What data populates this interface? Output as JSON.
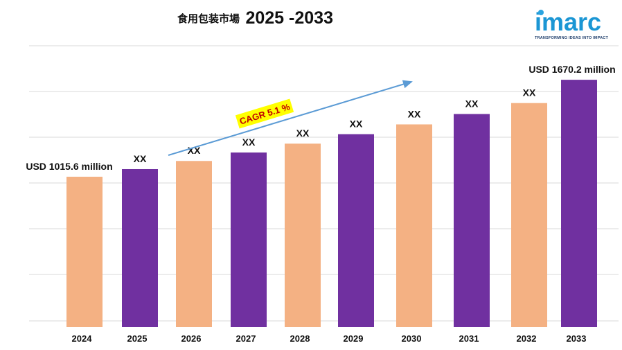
{
  "header": {
    "title_cn": "食用包装市場",
    "title_years": "2025 -2033"
  },
  "logo": {
    "word": "imarc",
    "tagline": "TRANSFORMING IDEAS INTO IMPACT",
    "color": "#1b96d4"
  },
  "colors": {
    "peach": "#f4b183",
    "purple": "#7030a0",
    "grid": "#d9d9d9",
    "arrow": "#5b9bd5",
    "cagr_bg": "#ffff00",
    "cagr_text": "#c00000"
  },
  "chart_data": {
    "type": "bar",
    "categories": [
      "2024",
      "2025",
      "2026",
      "2027",
      "2028",
      "2029",
      "2030",
      "2031",
      "2032",
      "2033"
    ],
    "values": [
      1015.6,
      1067,
      1122,
      1179,
      1239,
      1303,
      1369,
      1439,
      1513,
      1670.2
    ],
    "labels": [
      "USD 1015.6 million",
      "XX",
      "XX",
      "XX",
      "XX",
      "XX",
      "XX",
      "XX",
      "XX",
      "USD 1670.2 million"
    ],
    "bar_colors": [
      "#f4b183",
      "#7030a0",
      "#f4b183",
      "#7030a0",
      "#f4b183",
      "#7030a0",
      "#f4b183",
      "#7030a0",
      "#f4b183",
      "#7030a0"
    ],
    "cagr_label": "CAGR 5.1 %",
    "ylim": [
      0,
      1900
    ],
    "grid": true,
    "legend": "none"
  }
}
